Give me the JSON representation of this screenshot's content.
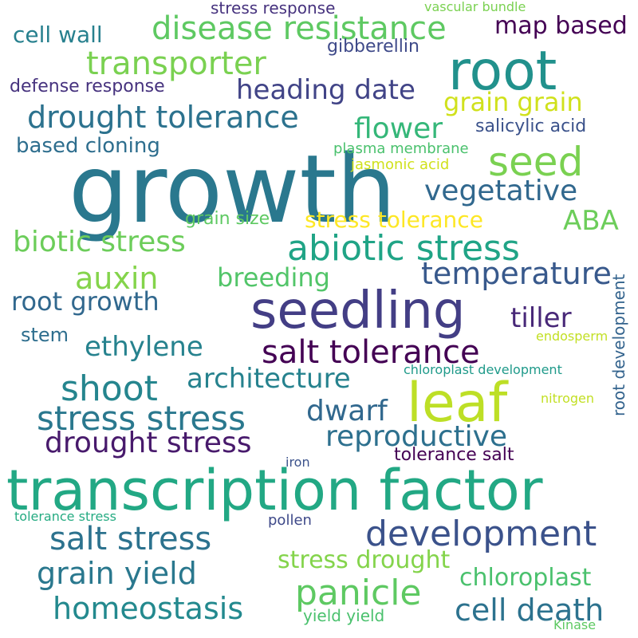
{
  "words": [
    {
      "text": "growth",
      "color": "#2a788e"
    },
    {
      "text": "transcription factor",
      "color": "#22a884"
    },
    {
      "text": "root",
      "color": "#21918c"
    },
    {
      "text": "seedling",
      "color": "#433e85"
    },
    {
      "text": "leaf",
      "color": "#bddf26"
    },
    {
      "text": "development",
      "color": "#3b528b"
    },
    {
      "text": "disease resistance",
      "color": "#5ec962"
    },
    {
      "text": "transporter",
      "color": "#7ad151"
    },
    {
      "text": "drought tolerance",
      "color": "#2c728e"
    },
    {
      "text": "abiotic stress",
      "color": "#20a486"
    },
    {
      "text": "seed",
      "color": "#7ad151"
    },
    {
      "text": "stress stress",
      "color": "#2a788e"
    },
    {
      "text": "shoot",
      "color": "#25858e"
    },
    {
      "text": "salt tolerance",
      "color": "#440154"
    },
    {
      "text": "panicle",
      "color": "#5ec962"
    },
    {
      "text": "heading date",
      "color": "#414487"
    },
    {
      "text": "vegetative",
      "color": "#31688e"
    },
    {
      "text": "temperature",
      "color": "#38598c"
    },
    {
      "text": "biotic stress",
      "color": "#6ccd5a"
    },
    {
      "text": "reproductive",
      "color": "#2d708e"
    },
    {
      "text": "salt stress",
      "color": "#2c728e"
    },
    {
      "text": "grain yield",
      "color": "#2a788e"
    },
    {
      "text": "homeostasis",
      "color": "#23898e"
    },
    {
      "text": "drought stress",
      "color": "#481a6c"
    },
    {
      "text": "architecture",
      "color": "#26828e"
    },
    {
      "text": "ethylene",
      "color": "#26828e"
    },
    {
      "text": "cell death",
      "color": "#2c728e"
    },
    {
      "text": "flower",
      "color": "#35b779"
    },
    {
      "text": "grain grain",
      "color": "#d0e11c"
    },
    {
      "text": "auxin",
      "color": "#84d44b"
    },
    {
      "text": "breeding",
      "color": "#52c569"
    },
    {
      "text": "root growth",
      "color": "#31688e"
    },
    {
      "text": "tiller",
      "color": "#482878"
    },
    {
      "text": "dwarf",
      "color": "#31688e"
    },
    {
      "text": "map based",
      "color": "#440154"
    },
    {
      "text": "ABA",
      "color": "#6ccd5a"
    },
    {
      "text": "stress drought",
      "color": "#84d44b"
    },
    {
      "text": "chloroplast",
      "color": "#4ac16d"
    },
    {
      "text": "cell wall",
      "color": "#27808e"
    },
    {
      "text": "stress tolerance",
      "color": "#fde725"
    },
    {
      "text": "based cloning",
      "color": "#2e6e8e"
    },
    {
      "text": "defense response",
      "color": "#46327e"
    },
    {
      "text": "gibberellin",
      "color": "#3e4989"
    },
    {
      "text": "salicylic acid",
      "color": "#3b528b"
    },
    {
      "text": "stem",
      "color": "#2e6e8e"
    },
    {
      "text": "grain size",
      "color": "#5ec962"
    },
    {
      "text": "plasma membrane",
      "color": "#4ac16d"
    },
    {
      "text": "jasmonic acid",
      "color": "#d0e11c"
    },
    {
      "text": "yield yield",
      "color": "#4ac16d"
    },
    {
      "text": "tolerance salt",
      "color": "#440154"
    },
    {
      "text": "root development",
      "color": "#33638d"
    },
    {
      "text": "chloroplast development",
      "color": "#1f9a8a"
    },
    {
      "text": "stress response",
      "color": "#46327e"
    },
    {
      "text": "vascular bundle",
      "color": "#7ad151"
    },
    {
      "text": "pollen",
      "color": "#3e4989"
    },
    {
      "text": "endosperm",
      "color": "#c2df23"
    },
    {
      "text": "nitrogen",
      "color": "#c2df23"
    },
    {
      "text": "iron",
      "color": "#3b528b"
    },
    {
      "text": "tolerance stress",
      "color": "#25ab82"
    },
    {
      "text": "Kinase",
      "color": "#5ec962"
    }
  ]
}
